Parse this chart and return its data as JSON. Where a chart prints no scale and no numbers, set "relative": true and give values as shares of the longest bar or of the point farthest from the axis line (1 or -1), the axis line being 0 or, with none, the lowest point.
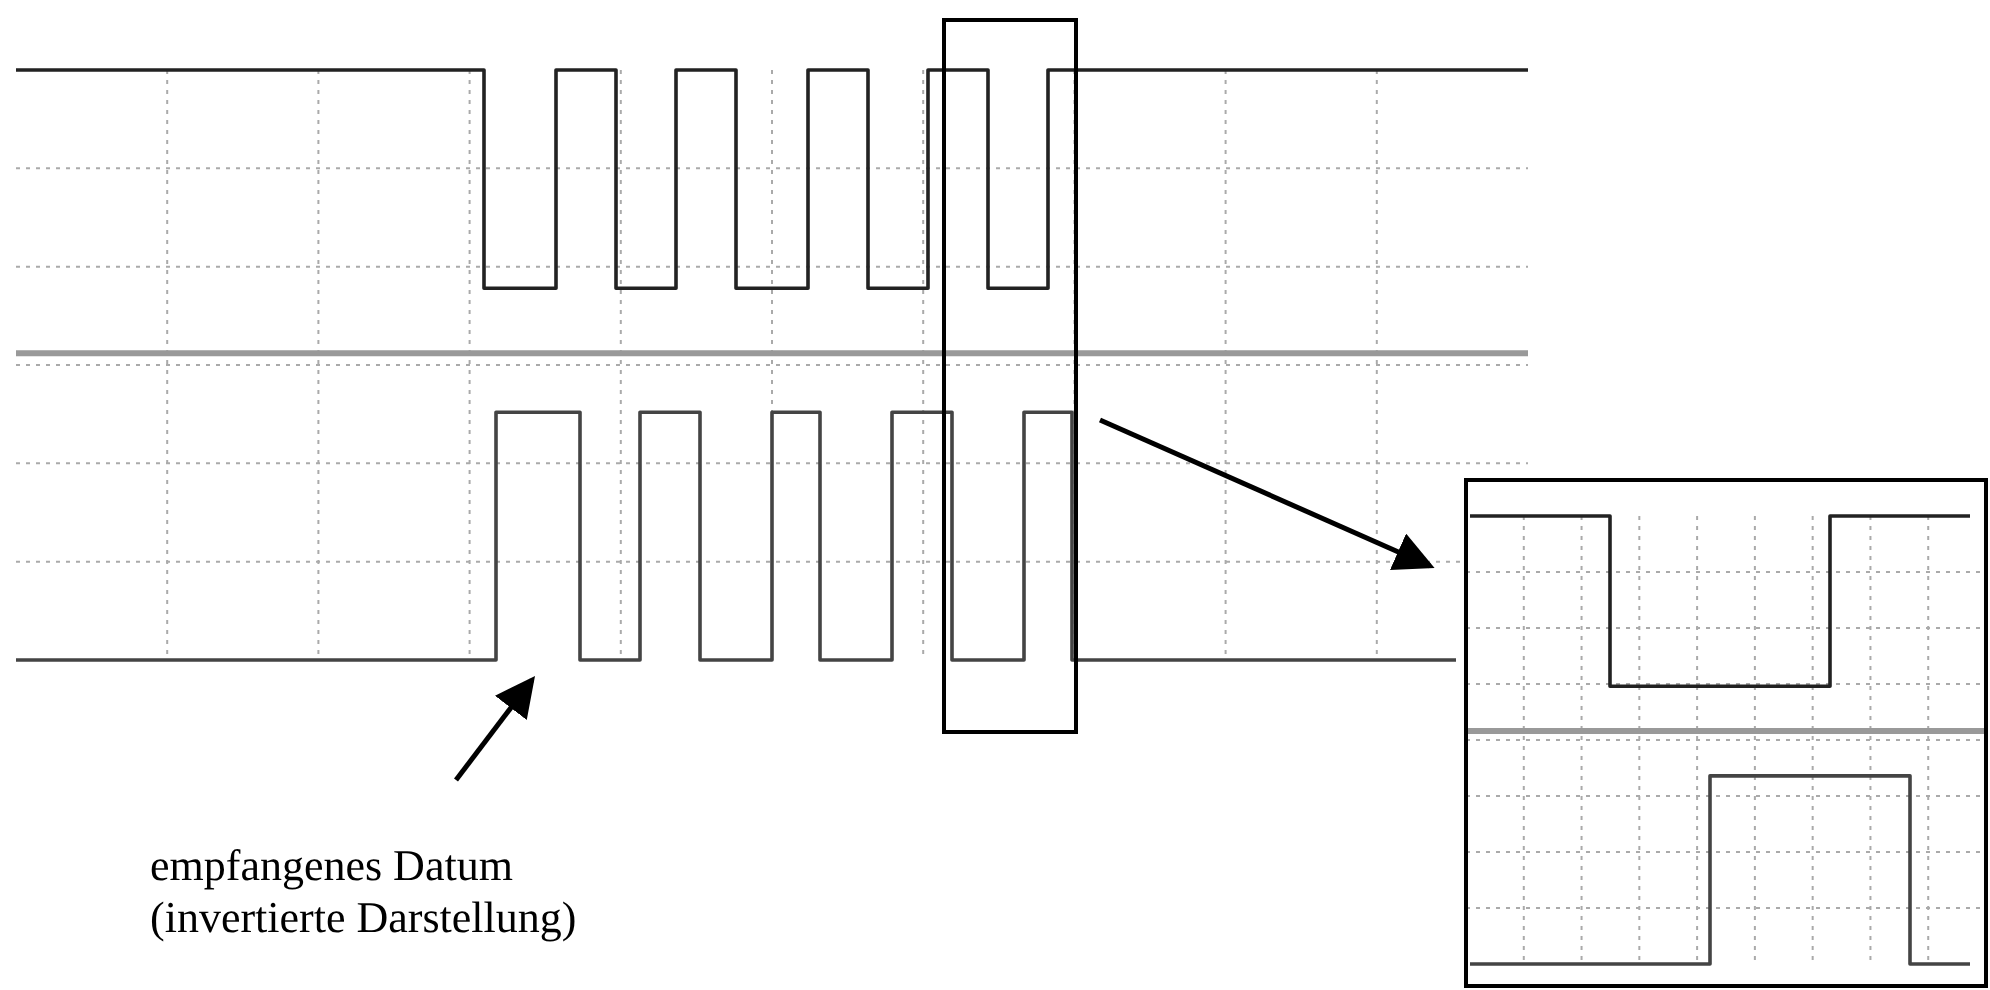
{
  "chart_data": [
    {
      "type": "step",
      "relative": true,
      "grid": true,
      "categories": [
        null,
        null,
        null,
        null,
        null,
        null,
        null,
        null,
        null,
        null,
        null,
        null,
        null,
        null,
        null,
        null,
        null,
        null,
        null,
        null,
        null,
        null,
        null,
        null,
        null,
        null,
        null,
        null,
        null,
        null,
        null,
        null,
        null,
        null,
        null,
        null,
        null,
        null,
        null,
        null,
        null,
        null,
        null,
        null,
        null,
        null,
        null,
        null,
        null,
        null,
        null,
        null,
        null,
        null,
        null,
        null,
        null,
        null,
        null,
        null,
        null,
        null,
        null,
        null,
        null,
        null,
        null,
        null,
        null,
        null,
        null,
        null,
        null,
        null,
        null,
        null,
        null,
        null,
        null,
        null,
        null,
        null,
        null,
        null,
        null,
        null,
        null,
        null,
        null,
        null,
        null,
        null,
        null,
        null,
        null,
        null,
        null,
        null,
        null,
        null,
        null,
        null,
        null,
        null,
        null,
        null,
        null,
        null,
        null,
        null,
        null,
        null,
        null,
        null,
        null,
        null,
        null,
        null,
        null,
        null,
        null,
        null,
        null,
        null,
        null,
        null,
        null
      ],
      "series": [
        {
          "color": "#222222",
          "values": [
            1,
            1,
            1,
            1,
            1,
            1,
            1,
            1,
            1,
            1,
            1,
            1,
            1,
            1,
            1,
            1,
            1,
            1,
            1,
            1,
            1,
            1,
            1,
            1,
            1,
            1,
            1,
            1,
            1,
            1,
            1,
            1,
            1,
            1,
            1,
            1,
            1,
            1,
            1,
            0.63,
            0.63,
            0.63,
            0.63,
            0.63,
            0.63,
            1,
            1,
            1,
            1,
            1,
            0.63,
            0.63,
            0.63,
            0.63,
            0.63,
            1,
            1,
            1,
            1,
            1,
            0.63,
            0.63,
            0.63,
            0.63,
            0.63,
            0.63,
            1,
            1,
            1,
            1,
            1,
            0.63,
            0.63,
            0.63,
            0.63,
            0.63,
            1,
            1,
            1,
            1,
            1,
            0.63,
            0.63,
            0.63,
            0.63,
            0.63,
            1,
            1,
            1,
            1,
            1,
            1,
            1,
            1,
            1,
            1,
            1,
            1,
            1,
            1,
            1,
            1,
            1,
            1,
            1,
            1,
            1,
            1,
            1,
            1,
            1,
            1,
            1,
            1,
            1,
            1,
            1,
            1,
            1,
            1,
            1,
            1,
            1,
            1,
            1,
            1,
            1
          ]
        },
        {
          "color": "#444444",
          "values": [
            0,
            0,
            0,
            0,
            0,
            0,
            0,
            0,
            0,
            0,
            0,
            0,
            0,
            0,
            0,
            0,
            0,
            0,
            0,
            0,
            0,
            0,
            0,
            0,
            0,
            0,
            0,
            0,
            0,
            0,
            0,
            0,
            0,
            0,
            0,
            0,
            0,
            0,
            0,
            0,
            0.42,
            0.42,
            0.42,
            0.42,
            0.42,
            0.42,
            0.42,
            0,
            0,
            0,
            0,
            0,
            0.42,
            0.42,
            0.42,
            0.42,
            0.42,
            0,
            0,
            0,
            0,
            0,
            0,
            0.42,
            0.42,
            0.42,
            0.42,
            0,
            0,
            0,
            0,
            0,
            0,
            0.42,
            0.42,
            0.42,
            0.42,
            0.42,
            0,
            0,
            0,
            0,
            0,
            0,
            0.42,
            0.42,
            0.42,
            0.42,
            0,
            0,
            0,
            0,
            0,
            0,
            0,
            0,
            0,
            0,
            0,
            0,
            0,
            0,
            0,
            0,
            0,
            0,
            0,
            0,
            0,
            0,
            0,
            0,
            0,
            0,
            0,
            0,
            0,
            0,
            0,
            0,
            0,
            null,
            null,
            null,
            null,
            null,
            null
          ]
        }
      ],
      "ref_lines": [
        {
          "axis": "y",
          "value": 0.52,
          "label": null,
          "color": "#999999"
        }
      ],
      "annotations": [
        "empfangenes Datum\n(invertierte Darstellung)"
      ]
    },
    {
      "type": "step",
      "relative": true,
      "grid": true,
      "categories": [
        null,
        null,
        null,
        null,
        null,
        null,
        null,
        null,
        null,
        null,
        null,
        null,
        null,
        null,
        null,
        null,
        null,
        null,
        null,
        null,
        null,
        null,
        null,
        null,
        null,
        null
      ],
      "series": [
        {
          "color": "#222222",
          "values": [
            1,
            1,
            1,
            1,
            1,
            1,
            1,
            0.62,
            0.62,
            0.62,
            0.62,
            0.62,
            0.62,
            0.62,
            0.62,
            0.62,
            0.62,
            0.62,
            1,
            1,
            1,
            1,
            1,
            1,
            1,
            1
          ]
        },
        {
          "color": "#444444",
          "values": [
            0,
            0,
            0,
            0,
            0,
            0,
            0,
            0,
            0,
            0,
            0,
            0,
            0.42,
            0.42,
            0.42,
            0.42,
            0.42,
            0.42,
            0.42,
            0.42,
            0.42,
            0.42,
            0,
            0,
            0,
            0
          ]
        }
      ],
      "ref_lines": [
        {
          "axis": "y",
          "value": 0.52,
          "label": null,
          "color": "#999999"
        }
      ]
    }
  ]
}
